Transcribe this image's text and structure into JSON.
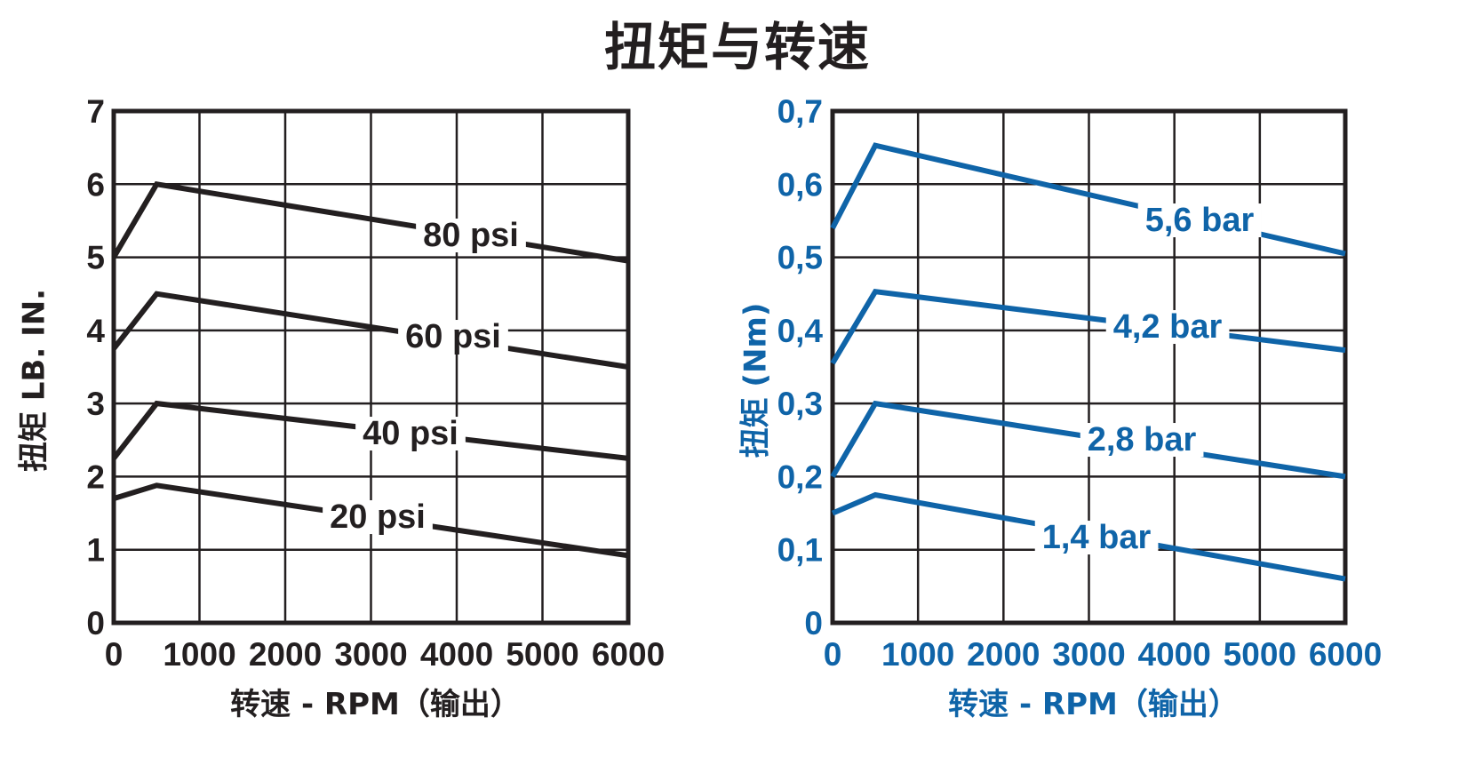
{
  "title": "扭矩与转速",
  "chart_data": [
    {
      "type": "line",
      "title": "",
      "xlabel": "转速 - RPM（输出）",
      "ylabel": "扭矩 LB. IN.",
      "xlim": [
        0,
        6000
      ],
      "ylim": [
        0,
        7
      ],
      "xticks": [
        "0",
        "1000",
        "2000",
        "3000",
        "4000",
        "5000",
        "6000"
      ],
      "yticks": [
        "0",
        "1",
        "2",
        "3",
        "4",
        "5",
        "6",
        "7"
      ],
      "grid": true,
      "color": "#231f20",
      "series": [
        {
          "name": "80 psi",
          "x": [
            0,
            500,
            6000
          ],
          "y": [
            5.0,
            6.0,
            4.95
          ]
        },
        {
          "name": "60 psi",
          "x": [
            0,
            500,
            6000
          ],
          "y": [
            3.75,
            4.5,
            3.5
          ]
        },
        {
          "name": "40 psi",
          "x": [
            0,
            500,
            6000
          ],
          "y": [
            2.25,
            3.0,
            2.25
          ]
        },
        {
          "name": "20 psi",
          "x": [
            0,
            500,
            6000
          ],
          "y": [
            1.7,
            1.88,
            0.92
          ]
        }
      ]
    },
    {
      "type": "line",
      "title": "",
      "xlabel": "转速 - RPM（输出）",
      "ylabel": "扭矩 (Nm)",
      "xlim": [
        0,
        6000
      ],
      "ylim": [
        0,
        0.7
      ],
      "xticks": [
        "0",
        "1000",
        "2000",
        "3000",
        "4000",
        "5000",
        "6000"
      ],
      "yticks": [
        "0",
        "0,1",
        "0,2",
        "0,3",
        "0,4",
        "0,5",
        "0,6",
        "0,7"
      ],
      "grid": true,
      "color": "#0f64a8",
      "series": [
        {
          "name": "5,6 bar",
          "x": [
            0,
            500,
            6000
          ],
          "y": [
            0.54,
            0.653,
            0.505
          ]
        },
        {
          "name": "4,2 bar",
          "x": [
            0,
            500,
            6000
          ],
          "y": [
            0.355,
            0.453,
            0.373
          ]
        },
        {
          "name": "2,8 bar",
          "x": [
            0,
            500,
            6000
          ],
          "y": [
            0.2,
            0.3,
            0.2
          ]
        },
        {
          "name": "1,4 bar",
          "x": [
            0,
            500,
            6000
          ],
          "y": [
            0.15,
            0.175,
            0.06
          ]
        }
      ]
    }
  ]
}
